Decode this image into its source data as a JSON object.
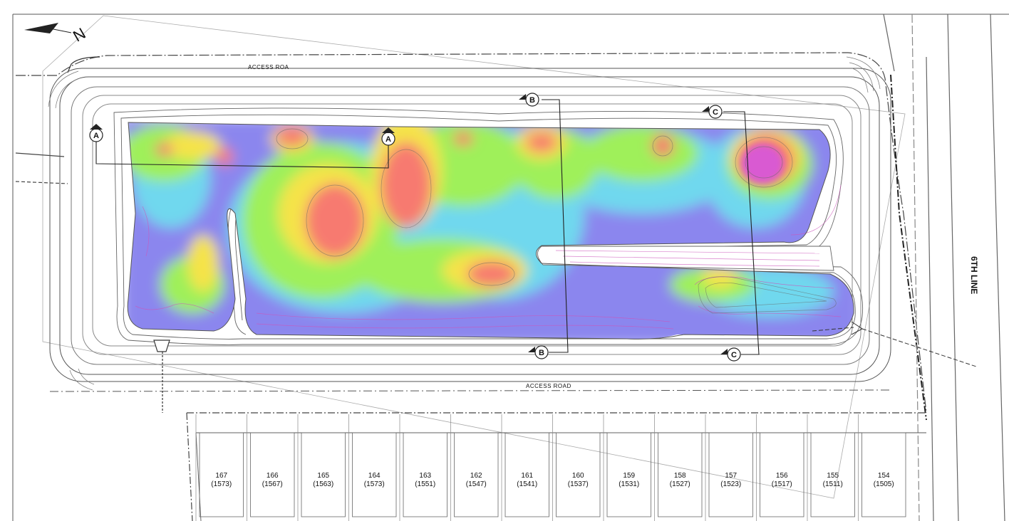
{
  "labels": {
    "access_road_top": "ACCESS ROA",
    "access_road_bottom": "ACCESS ROAD",
    "street": "6TH LINE",
    "north_arrow": "N"
  },
  "section_markers": [
    {
      "id": "A-west",
      "letter": "A"
    },
    {
      "id": "A-center",
      "letter": "A"
    },
    {
      "id": "B-top",
      "letter": "B"
    },
    {
      "id": "B-bottom",
      "letter": "B"
    },
    {
      "id": "C-top",
      "letter": "C"
    },
    {
      "id": "C-bottom",
      "letter": "C"
    }
  ],
  "lots": [
    {
      "lot": "167",
      "address": "(1573)"
    },
    {
      "lot": "166",
      "address": "(1567)"
    },
    {
      "lot": "165",
      "address": "(1563)"
    },
    {
      "lot": "164",
      "address": "(1573)"
    },
    {
      "lot": "163",
      "address": "(1551)"
    },
    {
      "lot": "162",
      "address": "(1547)"
    },
    {
      "lot": "161",
      "address": "(1541)"
    },
    {
      "lot": "160",
      "address": "(1537)"
    },
    {
      "lot": "159",
      "address": "(1531)"
    },
    {
      "lot": "158",
      "address": "(1527)"
    },
    {
      "lot": "157",
      "address": "(1523)"
    },
    {
      "lot": "156",
      "address": "(1517)"
    },
    {
      "lot": "155",
      "address": "(1511)"
    },
    {
      "lot": "154",
      "address": "(1505)"
    }
  ],
  "colors": {
    "deep": "#8b86ee",
    "mid": "#6fd8ee",
    "shallow": "#9ff05a",
    "warm": "#f5e34a",
    "hot": "#f77a70",
    "peak": "#d95ad2",
    "contour": "#cc55bb"
  }
}
